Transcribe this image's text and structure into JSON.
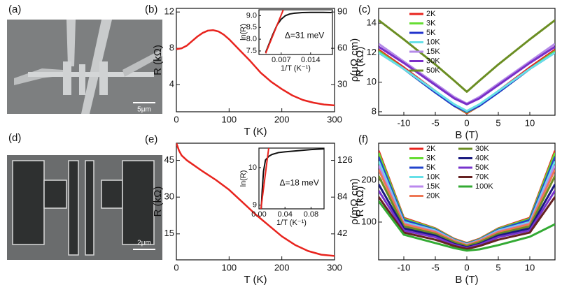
{
  "images": [
    {
      "label": "(a)",
      "scale_bar": "5μm"
    },
    {
      "label": "(d)",
      "scale_bar": "2μm"
    }
  ],
  "chart_data": [
    {
      "type": "line",
      "label": "(b)",
      "xlabel": "T (K)",
      "ylabel": "R (kΩ)",
      "y2label": "ρ(μΩ cm)",
      "xlim": [
        0,
        300
      ],
      "ylim": [
        1,
        12.4
      ],
      "y2lim": [
        7.5,
        93
      ],
      "xticks": [
        0,
        100,
        200,
        300
      ],
      "yticks": [
        4,
        8,
        12
      ],
      "y2ticks": [
        30,
        60,
        90
      ],
      "grid": false,
      "x": [
        0,
        10,
        20,
        30,
        40,
        50,
        60,
        70,
        80,
        90,
        100,
        120,
        140,
        160,
        180,
        200,
        220,
        240,
        260,
        280,
        300
      ],
      "series": [
        {
          "color": "#e8241e",
          "values": [
            7.9,
            8.0,
            8.3,
            8.8,
            9.3,
            9.7,
            9.95,
            10.0,
            9.85,
            9.5,
            9.0,
            7.8,
            6.6,
            5.3,
            4.3,
            3.5,
            2.8,
            2.3,
            2.0,
            1.8,
            1.7
          ]
        }
      ],
      "inset": {
        "type": "line",
        "xlabel": "1/T (K⁻¹)",
        "ylabel": "ln(R)",
        "annotation": "Δ=31 meV",
        "xlim": [
          0.0017,
          0.0192
        ],
        "ylim": [
          7.35,
          9.25
        ],
        "xticks": [
          0.007,
          0.014
        ],
        "yticks": [
          7.5,
          {
            "value": 8,
            "label": "8.0"
          },
          8.5,
          {
            "value": 9,
            "label": "9.0"
          }
        ],
        "series": [
          {
            "color": "#111111",
            "x": [
              0.0033,
              0.004,
              0.005,
              0.006,
              0.007,
              0.008,
              0.009,
              0.01,
              0.012,
              0.014,
              0.017,
              0.019
            ],
            "values": [
              7.44,
              7.75,
              8.2,
              8.6,
              8.85,
              9.0,
              9.07,
              9.1,
              9.13,
              9.14,
              9.14,
              9.13
            ]
          },
          {
            "color": "#e8241e",
            "x": [
              0.0033,
              0.0075
            ],
            "values": [
              7.4,
              9.25
            ]
          }
        ]
      }
    },
    {
      "type": "line",
      "label": "(c)",
      "xlabel": "B (T)",
      "ylabel": "R (kΩ)",
      "xlim": [
        -14,
        14
      ],
      "ylim": [
        7.76,
        15
      ],
      "xticks": [
        -10,
        -5,
        0,
        5,
        10
      ],
      "yticks": [
        8,
        10,
        12,
        14
      ],
      "grid": false,
      "legend": "upper left",
      "legend_columns": 1,
      "x": [
        -14,
        -10,
        -5,
        -2,
        0,
        2,
        5,
        10,
        14
      ],
      "series": [
        {
          "name": "2K",
          "color": "#e8241e",
          "values": [
            12.2,
            11.0,
            9.4,
            8.4,
            7.9,
            8.4,
            9.4,
            11.0,
            12.2
          ]
        },
        {
          "name": "3K",
          "color": "#66dd33",
          "values": [
            12.1,
            10.9,
            9.3,
            8.4,
            7.95,
            8.4,
            9.3,
            10.9,
            12.1
          ]
        },
        {
          "name": "5K",
          "color": "#2233cc",
          "values": [
            12.0,
            10.9,
            9.3,
            8.4,
            8.0,
            8.4,
            9.3,
            10.9,
            12.0
          ]
        },
        {
          "name": "10K",
          "color": "#66e0e8",
          "values": [
            12.0,
            10.9,
            9.4,
            8.5,
            8.05,
            8.5,
            9.4,
            10.9,
            12.0
          ]
        },
        {
          "name": "15K",
          "color": "#b48ae8",
          "values": [
            12.6,
            11.4,
            9.9,
            9.0,
            8.55,
            9.0,
            9.9,
            11.4,
            12.6
          ]
        },
        {
          "name": "30K",
          "color": "#7a2fc8",
          "values": [
            12.4,
            11.3,
            9.8,
            8.9,
            8.5,
            8.9,
            9.8,
            11.3,
            12.4
          ]
        },
        {
          "name": "50K",
          "color": "#6b8e23",
          "values": [
            14.2,
            12.9,
            11.2,
            10.1,
            9.35,
            10.1,
            11.2,
            12.9,
            14.2
          ]
        }
      ]
    },
    {
      "type": "line",
      "label": "(e)",
      "xlabel": "T (K)",
      "ylabel": "R (kΩ)",
      "y2label": "ρ(mΩ cm)",
      "xlim": [
        0,
        300
      ],
      "ylim": [
        4.4,
        52
      ],
      "y2lim": [
        12.32,
        145.6
      ],
      "xticks": [
        0,
        100,
        200,
        300
      ],
      "yticks": [
        15,
        30,
        45
      ],
      "y2ticks": [
        42,
        84,
        126
      ],
      "grid": false,
      "x": [
        0,
        5,
        10,
        20,
        30,
        50,
        75,
        100,
        125,
        150,
        175,
        200,
        225,
        250,
        275,
        300
      ],
      "series": [
        {
          "color": "#e8241e",
          "values": [
            52,
            49,
            47,
            45,
            43.5,
            40.5,
            37,
            33,
            28,
            23,
            18.5,
            14,
            10.5,
            8,
            6.5,
            6
          ]
        }
      ],
      "inset": {
        "type": "line",
        "xlabel": "1/T (K⁻¹)",
        "ylabel": "ln(R)",
        "annotation": "Δ=18 meV",
        "xlim": [
          0,
          0.1
        ],
        "ylim": [
          8.9,
          10.52
        ],
        "xticks": [
          {
            "value": 0,
            "label": "0.00"
          },
          0.04,
          0.08
        ],
        "yticks": [
          9,
          10
        ],
        "series": [
          {
            "color": "#111111",
            "x": [
              0.0035,
              0.005,
              0.007,
              0.01,
              0.015,
              0.02,
              0.03,
              0.04,
              0.06,
              0.08,
              0.1
            ],
            "values": [
              8.9,
              9.4,
              9.9,
              10.2,
              10.3,
              10.35,
              10.4,
              10.42,
              10.45,
              10.48,
              10.5
            ]
          },
          {
            "color": "#e8241e",
            "x": [
              0.003,
              0.015
            ],
            "values": [
              8.9,
              10.52
            ]
          }
        ]
      }
    },
    {
      "type": "line",
      "label": "(f)",
      "xlabel": "B (T)",
      "ylabel": "R (kΩ)",
      "xlim": [
        -14,
        14
      ],
      "ylim": [
        10,
        288
      ],
      "xticks": [
        -10,
        -5,
        0,
        5,
        10
      ],
      "yticks": [
        100,
        200
      ],
      "grid": false,
      "legend": "upper left",
      "legend_columns": 2,
      "x": [
        -14,
        -10,
        -5,
        -2,
        0,
        2,
        5,
        10,
        14
      ],
      "series": [
        {
          "name": "2K",
          "color": "#e8241e",
          "values": [
            270,
            110,
            85,
            60,
            50,
            60,
            85,
            110,
            270
          ]
        },
        {
          "name": "3K",
          "color": "#66dd33",
          "values": [
            265,
            108,
            84,
            59,
            49,
            59,
            84,
            108,
            265
          ]
        },
        {
          "name": "5K",
          "color": "#2244cc",
          "values": [
            255,
            105,
            82,
            58,
            48,
            58,
            82,
            105,
            255
          ]
        },
        {
          "name": "10K",
          "color": "#66e0e8",
          "values": [
            245,
            100,
            80,
            57,
            47,
            57,
            80,
            100,
            245
          ]
        },
        {
          "name": "15K",
          "color": "#bb88ee",
          "values": [
            235,
            97,
            78,
            56,
            46,
            56,
            78,
            97,
            235
          ]
        },
        {
          "name": "20K",
          "color": "#ee7755",
          "values": [
            225,
            95,
            76,
            55,
            45,
            55,
            76,
            95,
            225
          ]
        },
        {
          "name": "30K",
          "color": "#6b8e23",
          "values": [
            210,
            90,
            72,
            52,
            43,
            52,
            72,
            90,
            210
          ]
        },
        {
          "name": "40K",
          "color": "#1a1a80",
          "values": [
            190,
            85,
            68,
            48,
            40,
            48,
            68,
            85,
            190
          ]
        },
        {
          "name": "50K",
          "color": "#7733cc",
          "values": [
            175,
            80,
            64,
            46,
            38,
            46,
            64,
            80,
            175
          ]
        },
        {
          "name": "70K",
          "color": "#662222",
          "values": [
            160,
            75,
            58,
            43,
            36,
            43,
            58,
            75,
            160
          ]
        },
        {
          "name": "100K",
          "color": "#33aa33",
          "values": [
            150,
            70,
            50,
            38,
            32,
            35,
            45,
            65,
            95
          ]
        }
      ]
    }
  ]
}
